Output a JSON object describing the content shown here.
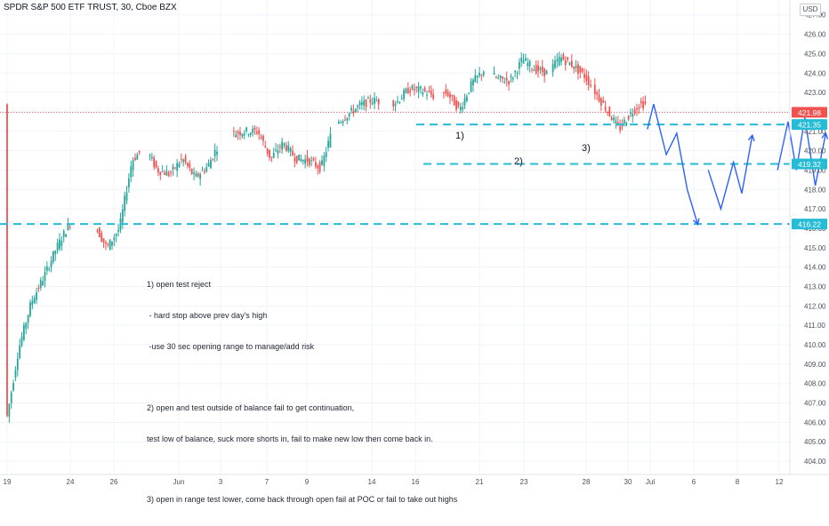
{
  "header": {
    "title": "SPDR S&P 500 ETF TRUST, 30, Cboe BZX"
  },
  "currency": "USD",
  "notes": {
    "n1": "1) open test reject",
    "n2": " - hard stop above prev day's high",
    " n3": "",
    "n3": " -use 30 sec opening range to manage/add risk",
    "n4": "2) open and test outside of balance fail to get continuation,",
    "n5": "test low of balance, suck more shorts in, fail to make new low then come back in.",
    "n6": "3) open in range test lower, come back through open fail at POC or fail to take out highs"
  },
  "chart_data": {
    "type": "candlestick",
    "title": "SPDR S&P 500 ETF TRUST, 30, Cboe BZX",
    "ylim": [
      403.5,
      427.4
    ],
    "y_ticks": [
      "404.00",
      "405.00",
      "406.00",
      "407.00",
      "408.00",
      "409.00",
      "410.00",
      "411.00",
      "412.00",
      "413.00",
      "414.00",
      "415.00",
      "416.00",
      "417.00",
      "418.00",
      "419.00",
      "420.00",
      "421.00",
      "422.00",
      "423.00",
      "424.00",
      "425.00",
      "426.00",
      "427.00"
    ],
    "x_ticks": [
      "19",
      "24",
      "26",
      "Jun",
      "3",
      "7",
      "9",
      "14",
      "16",
      "21",
      "23",
      "28",
      "30",
      "Jul",
      "6",
      "8",
      "12"
    ],
    "price_path": [
      [
        -22,
        406.0
      ],
      [
        -16,
        409.8
      ],
      [
        -10,
        412.2
      ],
      [
        -4,
        413.5
      ],
      [
        2,
        415.0
      ],
      [
        8,
        416.2
      ],
      [
        14,
        417.3
      ],
      [
        20,
        416.2
      ],
      [
        26,
        415.0
      ],
      [
        32,
        416.0
      ],
      [
        38,
        419.5
      ],
      [
        44,
        420.2
      ],
      [
        50,
        419.0
      ],
      [
        56,
        418.8
      ],
      [
        62,
        419.6
      ],
      [
        68,
        418.6
      ],
      [
        74,
        419.2
      ],
      [
        80,
        420.5
      ],
      [
        86,
        420.9
      ],
      [
        92,
        421.0
      ],
      [
        98,
        421.0
      ],
      [
        104,
        419.6
      ],
      [
        110,
        420.4
      ],
      [
        116,
        419.6
      ],
      [
        122,
        419.5
      ],
      [
        128,
        419.1
      ],
      [
        134,
        421.3
      ],
      [
        140,
        421.8
      ],
      [
        146,
        422.3
      ],
      [
        152,
        422.6
      ],
      [
        158,
        422.5
      ],
      [
        164,
        422.5
      ],
      [
        170,
        423.2
      ],
      [
        176,
        423.1
      ],
      [
        182,
        422.8
      ],
      [
        188,
        423.0
      ],
      [
        194,
        422.1
      ],
      [
        200,
        423.5
      ],
      [
        206,
        424.2
      ],
      [
        212,
        423.7
      ],
      [
        218,
        423.6
      ],
      [
        224,
        424.7
      ],
      [
        230,
        424.2
      ],
      [
        236,
        424.0
      ],
      [
        242,
        424.8
      ],
      [
        248,
        424.4
      ],
      [
        254,
        423.8
      ],
      [
        260,
        422.8
      ],
      [
        266,
        421.8
      ],
      [
        270,
        421.1
      ],
      [
        276,
        422.0
      ],
      [
        280,
        422.4
      ]
    ],
    "sessions": [
      {
        "from": -22,
        "to": 8
      },
      {
        "from": 21,
        "to": 41
      },
      {
        "from": 46,
        "to": 78
      },
      {
        "from": 86,
        "to": 102
      },
      {
        "from": 103,
        "to": 132
      },
      {
        "from": 136,
        "to": 155
      },
      {
        "from": 162,
        "to": 181
      },
      {
        "from": 186,
        "to": 205
      },
      {
        "from": 210,
        "to": 235
      },
      {
        "from": 238,
        "to": 256
      },
      {
        "from": 258,
        "to": 282
      }
    ],
    "levels": [
      {
        "label": "421.35",
        "value": 421.35
      },
      {
        "label": "419.32",
        "value": 419.32
      },
      {
        "label": "416.22",
        "value": 416.22
      }
    ],
    "last_price": {
      "label": "421.98",
      "value": 421.98
    },
    "scenarios": [
      {
        "label": "1)",
        "path": [
          [
            283,
            421.1
          ],
          [
            286,
            422.4
          ],
          [
            292,
            419.8
          ],
          [
            297,
            420.9
          ],
          [
            302,
            418.0
          ],
          [
            307,
            416.2
          ]
        ],
        "arrow": true
      },
      {
        "label": "2)",
        "path": [
          [
            312,
            419.0
          ],
          [
            318,
            417.0
          ],
          [
            324,
            419.4
          ],
          [
            328,
            417.8
          ],
          [
            333,
            420.8
          ]
        ],
        "arrow": true
      },
      {
        "label": "3)",
        "path": [
          [
            345,
            419.0
          ],
          [
            350,
            421.5
          ],
          [
            354,
            419.0
          ],
          [
            358,
            421.7
          ],
          [
            363,
            418.2
          ],
          [
            368,
            420.9
          ]
        ],
        "arrow": true
      }
    ]
  }
}
